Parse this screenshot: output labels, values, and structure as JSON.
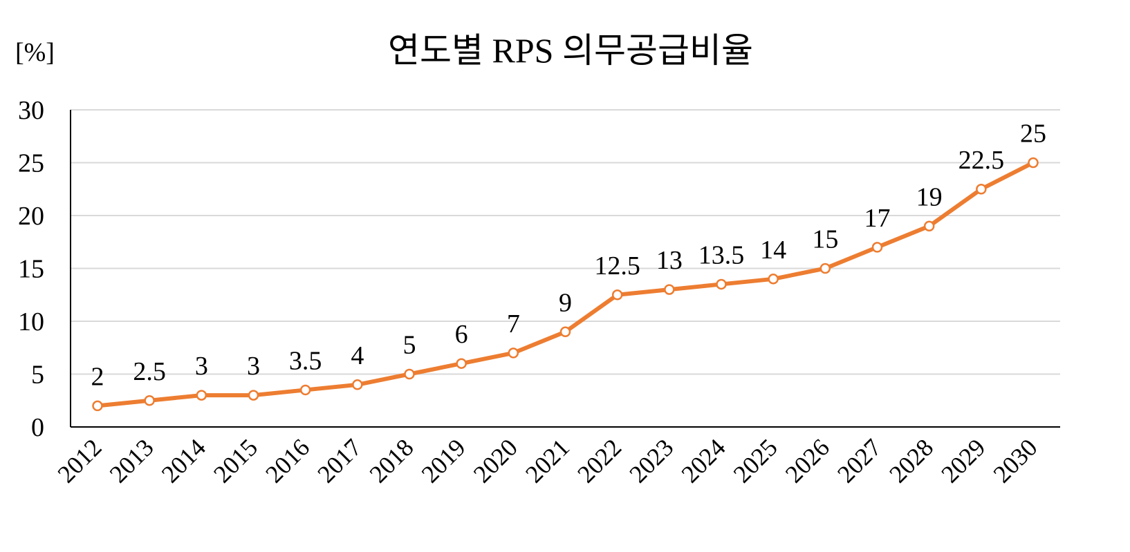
{
  "chart_data": {
    "type": "line",
    "title": "연도별 RPS 의무공급비율",
    "ylabel": "[%]",
    "xlabel": "",
    "ylim": [
      0,
      30
    ],
    "yticks": [
      "0",
      "5",
      "10",
      "15",
      "20",
      "25",
      "30"
    ],
    "grid": true,
    "legend": "none",
    "categories": [
      "2012",
      "2013",
      "2014",
      "2015",
      "2016",
      "2017",
      "2018",
      "2019",
      "2020",
      "2021",
      "2022",
      "2023",
      "2024",
      "2025",
      "2026",
      "2027",
      "2028",
      "2029",
      "2030"
    ],
    "series": [
      {
        "values": [
          2,
          2.5,
          3,
          3,
          3.5,
          4,
          5,
          6,
          7,
          9,
          12.5,
          13,
          13.5,
          14,
          15,
          17,
          19,
          22.5,
          25
        ],
        "data_labels": [
          "2",
          "2.5",
          "3",
          "3",
          "3.5",
          "4",
          "5",
          "6",
          "7",
          "9",
          "12.5",
          "13",
          "13.5",
          "14",
          "15",
          "17",
          "19",
          "22.5",
          "25"
        ],
        "color": "#ED7D31"
      }
    ],
    "colors": {
      "line": "#ED7D31",
      "grid": "#D9D9D9",
      "axis": "#000000"
    }
  }
}
